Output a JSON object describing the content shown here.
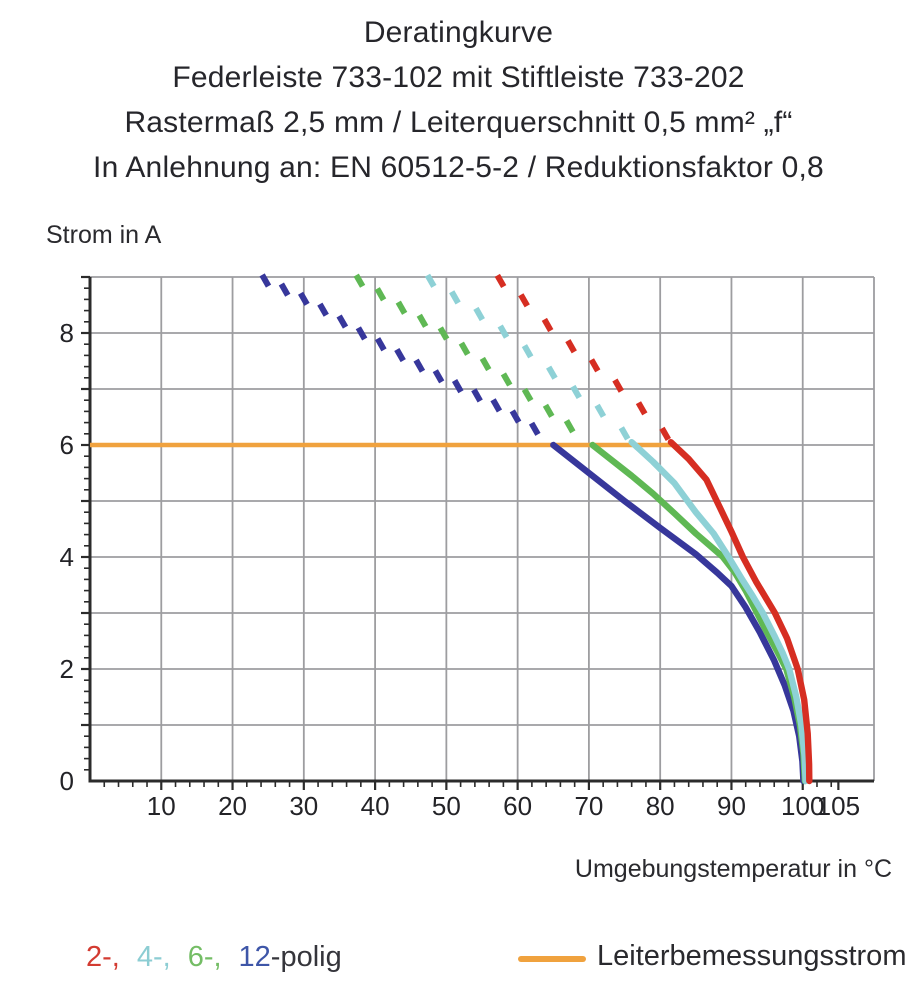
{
  "title": {
    "line1": "Deratingkurve",
    "line2": "Federleiste 733-102 mit Stiftleiste 733-202",
    "line3": "Rastermaß 2,5 mm / Leiterquerschnitt 0,5 mm² „f“",
    "line4": "In Anlehnung an: EN 60512-5-2 / Reduktionsfaktor 0,8"
  },
  "axes": {
    "y_label": "Strom in A",
    "x_label": "Umgebungstemperatur in °C"
  },
  "legend": {
    "pole_parts": [
      {
        "text": "2-,",
        "color": "#d33b31",
        "gap": true
      },
      {
        "text": "4-,",
        "color": "#8ccdd3",
        "gap": true
      },
      {
        "text": "6-,",
        "color": "#74bd65",
        "gap": true
      },
      {
        "text": "12",
        "color": "#3e56a8",
        "gap": false
      },
      {
        "text": "-polig",
        "color": "#35353b",
        "gap": false
      }
    ],
    "rated_current_label": "Leiterbemessungsstrom",
    "rated_current_color": "#f0a23e"
  },
  "chart_data": {
    "type": "line",
    "title": "Deratingkurve",
    "xlabel": "Umgebungstemperatur in °C",
    "ylabel": "Strom in A",
    "xlim": [
      0,
      110
    ],
    "ylim": [
      0,
      9
    ],
    "grid": true,
    "x_grid": [
      10,
      20,
      30,
      40,
      50,
      60,
      70,
      80,
      90,
      100
    ],
    "y_grid": [
      1,
      2,
      3,
      4,
      5,
      6,
      7,
      8
    ],
    "x_tick_labels": [
      10,
      20,
      30,
      40,
      50,
      60,
      70,
      80,
      90,
      100,
      105
    ],
    "y_tick_labels": [
      0,
      2,
      4,
      6,
      8
    ],
    "x_minor_step": 2,
    "y_minor_step": 0.2,
    "grid_color": "#9d9da0",
    "axis_color": "#2b2b2b",
    "text_color": "#232327",
    "rated_current_line": {
      "label": "Leiterbemessungsstrom",
      "y": 6,
      "x_start": 0,
      "x_end": 82,
      "color": "#f0a23e"
    },
    "series": [
      {
        "name": "12-polig",
        "poles": 12,
        "color": "#37379b",
        "dash_spacing": 2.7,
        "dashed": [
          [
            24.4,
            8.95
          ],
          [
            31,
            8.55
          ],
          [
            38,
            8.0
          ],
          [
            44,
            7.57
          ],
          [
            50,
            7.15
          ],
          [
            55.7,
            6.8
          ],
          [
            59.2,
            6.55
          ],
          [
            63.5,
            6.2
          ],
          [
            65,
            6.05
          ]
        ],
        "solid": [
          [
            65,
            6.0
          ],
          [
            70,
            5.5
          ],
          [
            75,
            5.0
          ],
          [
            80,
            4.52
          ],
          [
            85,
            4.05
          ],
          [
            88,
            3.72
          ],
          [
            90,
            3.48
          ],
          [
            92,
            3.1
          ],
          [
            94,
            2.65
          ],
          [
            96,
            2.15
          ],
          [
            97.5,
            1.7
          ],
          [
            98.7,
            1.25
          ],
          [
            99.5,
            0.8
          ],
          [
            99.95,
            0.35
          ],
          [
            100.1,
            0
          ]
        ]
      },
      {
        "name": "6-polig",
        "poles": 6,
        "color": "#5fb854",
        "dash_spacing": 2.95,
        "dashed": [
          [
            37.6,
            8.95
          ],
          [
            45.3,
            8.32
          ],
          [
            49.5,
            8.0
          ],
          [
            56,
            7.4
          ],
          [
            62.4,
            6.8
          ],
          [
            66,
            6.45
          ],
          [
            70.5,
            6.05
          ]
        ],
        "solid": [
          [
            70.5,
            6.0
          ],
          [
            73,
            5.75
          ],
          [
            76,
            5.45
          ],
          [
            79,
            5.13
          ],
          [
            82,
            4.78
          ],
          [
            85,
            4.42
          ],
          [
            87,
            4.2
          ],
          [
            88.8,
            4.0
          ],
          [
            90.5,
            3.72
          ],
          [
            92,
            3.4
          ],
          [
            93.6,
            3.0
          ],
          [
            95,
            2.65
          ],
          [
            96.4,
            2.32
          ],
          [
            97.7,
            2.0
          ],
          [
            98.8,
            1.5
          ],
          [
            99.6,
            1.0
          ],
          [
            100.1,
            0.5
          ],
          [
            100.3,
            0
          ]
        ]
      },
      {
        "name": "4-polig",
        "poles": 4,
        "color": "#8ed1d6",
        "dash_spacing": 3.4,
        "dashed": [
          [
            47.6,
            8.95
          ],
          [
            55.4,
            8.27
          ],
          [
            59,
            7.93
          ],
          [
            62.1,
            7.6
          ],
          [
            65.6,
            7.2
          ],
          [
            69.2,
            6.85
          ],
          [
            72.7,
            6.5
          ],
          [
            76,
            6.08
          ]
        ],
        "solid": [
          [
            76,
            6.05
          ],
          [
            79,
            5.7
          ],
          [
            82,
            5.32
          ],
          [
            85,
            4.8
          ],
          [
            87.5,
            4.42
          ],
          [
            89.6,
            4.0
          ],
          [
            91.5,
            3.6
          ],
          [
            93,
            3.3
          ],
          [
            94.4,
            3.0
          ],
          [
            96,
            2.6
          ],
          [
            97.2,
            2.28
          ],
          [
            98.1,
            2.0
          ],
          [
            99.1,
            1.5
          ],
          [
            99.8,
            1.0
          ],
          [
            100.25,
            0.45
          ],
          [
            100.4,
            0
          ]
        ]
      },
      {
        "name": "2-polig",
        "poles": 2,
        "color": "#d62e22",
        "dash_spacing": 3.3,
        "dashed": [
          [
            57.4,
            8.95
          ],
          [
            61.7,
            8.5
          ],
          [
            65.2,
            8.0
          ],
          [
            68.7,
            7.64
          ],
          [
            72,
            7.3
          ],
          [
            75.5,
            6.9
          ],
          [
            79,
            6.45
          ],
          [
            81.5,
            6.08
          ]
        ],
        "solid": [
          [
            81.5,
            6.05
          ],
          [
            84,
            5.75
          ],
          [
            86.5,
            5.38
          ],
          [
            89,
            4.72
          ],
          [
            90,
            4.45
          ],
          [
            91.6,
            4.0
          ],
          [
            93.5,
            3.55
          ],
          [
            96.1,
            3.0
          ],
          [
            97.8,
            2.55
          ],
          [
            99.3,
            2.0
          ],
          [
            100.2,
            1.45
          ],
          [
            100.7,
            0.85
          ],
          [
            100.9,
            0.3
          ],
          [
            100.92,
            0
          ]
        ]
      }
    ]
  }
}
